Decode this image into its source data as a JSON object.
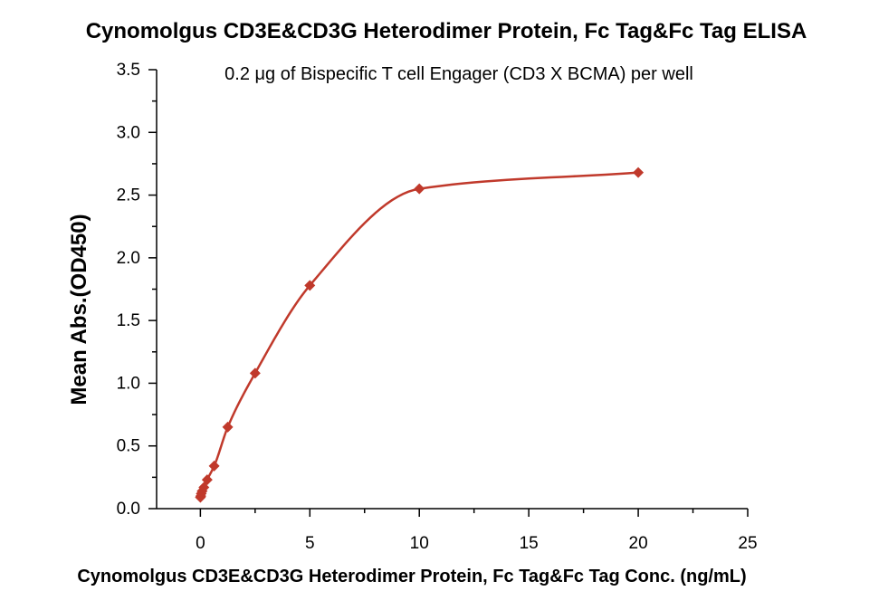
{
  "chart_data": {
    "type": "scatter",
    "title": "Cynomolgus CD3E&CD3G Heterodimer Protein, Fc Tag&Fc Tag ELISA",
    "annotation": "0.2 μg of Bispecific T cell Engager (CD3 X BCMA)  per well",
    "xlabel": "Cynomolgus CD3E&CD3G Heterodimer Protein, Fc Tag&Fc Tag Conc. (ng/mL)",
    "ylabel": "Mean Abs.(OD450)",
    "xlim": [
      -2,
      25
    ],
    "ylim": [
      0,
      3.5
    ],
    "x_ticks": [
      "0",
      "5",
      "10",
      "15",
      "20",
      "25"
    ],
    "y_ticks": [
      "0.0",
      "0.5",
      "1.0",
      "1.5",
      "2.0",
      "2.5",
      "3.0",
      "3.5"
    ],
    "color": "#c0392b",
    "marker": "diamond",
    "grid": false,
    "legend": "none",
    "series": [
      {
        "x": [
          0.0,
          0.02,
          0.04,
          0.08,
          0.16,
          0.31,
          0.63,
          1.25,
          2.5,
          5,
          10,
          20
        ],
        "y": [
          0.09,
          0.1,
          0.12,
          0.14,
          0.17,
          0.23,
          0.34,
          0.65,
          1.08,
          1.78,
          2.55,
          2.68
        ],
        "fit": "sigmoidal"
      }
    ]
  }
}
